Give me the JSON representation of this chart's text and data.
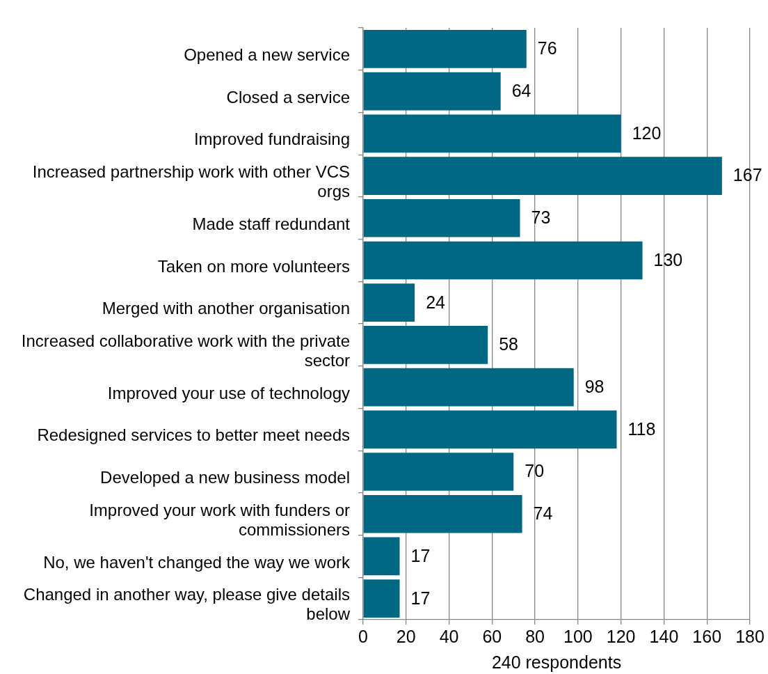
{
  "chart_data": {
    "type": "bar",
    "orientation": "horizontal",
    "xlabel": "240 respondents",
    "categories": [
      "Opened a new service",
      "Closed a service",
      "Improved fundraising",
      "Increased partnership work with other VCS orgs",
      "Made staff redundant",
      "Taken on more volunteers",
      "Merged with another organisation",
      "Increased collaborative work with the private sector",
      "Improved your use of technology",
      "Redesigned services to better meet needs",
      "Developed a new business model",
      "Improved your work with funders or commissioners",
      "No, we haven't changed the way we work",
      "Changed in another way, please give details below"
    ],
    "values": [
      76,
      64,
      120,
      167,
      73,
      130,
      24,
      58,
      98,
      118,
      70,
      74,
      17,
      17
    ],
    "color": "#006882",
    "xlim": [
      0,
      180
    ],
    "xticks": [
      0,
      20,
      40,
      60,
      80,
      100,
      120,
      140,
      160,
      180
    ],
    "grid": "x",
    "data_labels": true
  }
}
